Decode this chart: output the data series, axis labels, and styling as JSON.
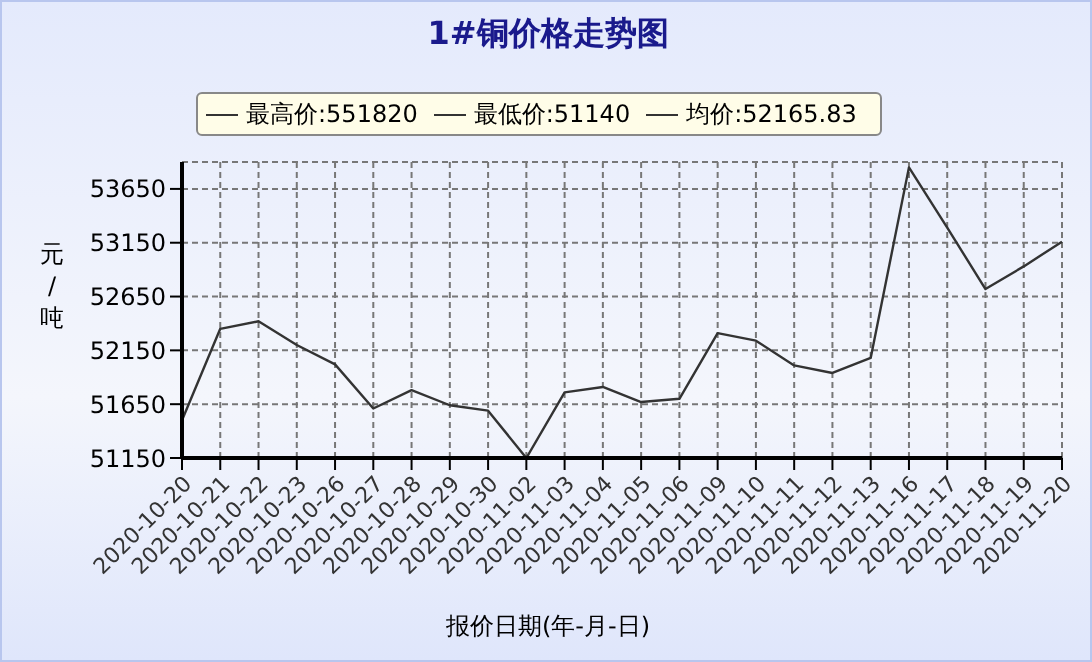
{
  "chart_data": {
    "type": "line",
    "title": "1#铜价格走势图",
    "xlabel": "报价日期(年-月-日)",
    "ylabel": "元/吨",
    "annotations": [
      "最高价:551820",
      "最低价:51140",
      "均价:52165.83"
    ],
    "categories": [
      "2020-10-20",
      "2020-10-21",
      "2020-10-22",
      "2020-10-23",
      "2020-10-26",
      "2020-10-27",
      "2020-10-28",
      "2020-10-29",
      "2020-10-30",
      "2020-11-02",
      "2020-11-03",
      "2020-11-04",
      "2020-11-05",
      "2020-11-06",
      "2020-11-09",
      "2020-11-10",
      "2020-11-11",
      "2020-11-12",
      "2020-11-13",
      "2020-11-16",
      "2020-11-17",
      "2020-11-18",
      "2020-11-19",
      "2020-11-20"
    ],
    "series": [
      {
        "color": "#333333",
        "values": [
          51500,
          52350,
          52420,
          52200,
          52020,
          51610,
          51780,
          51640,
          51590,
          51150,
          51760,
          51810,
          51670,
          51700,
          52310,
          52240,
          52010,
          51940,
          52080,
          53850,
          53290,
          52720,
          52930,
          53160
        ]
      }
    ],
    "ylim": [
      51150,
      53900
    ],
    "yticks": [
      51150,
      51650,
      52150,
      52650,
      53150,
      53650
    ],
    "grid": true
  }
}
